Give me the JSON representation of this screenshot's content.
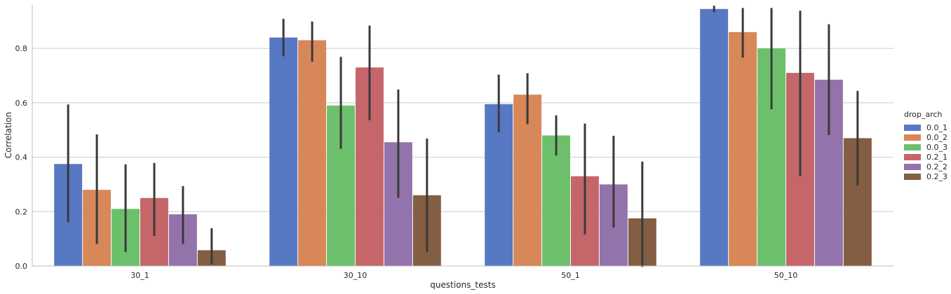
{
  "chart_data": {
    "type": "bar",
    "xlabel": "questions_tests",
    "ylabel": "Correlation",
    "categories": [
      "30_1",
      "30_10",
      "50_1",
      "50_10"
    ],
    "ylim": [
      0,
      0.96
    ],
    "yticks": [
      0.0,
      0.2,
      0.4,
      0.6,
      0.8
    ],
    "grid": "horizontal",
    "legend": {
      "title": "drop_arch",
      "placement": "right"
    },
    "series": [
      {
        "name": "0.0_1",
        "color": "#5778c3",
        "values": [
          0.375,
          0.84,
          0.595,
          0.945
        ],
        "err_low": [
          0.165,
          0.775,
          0.495,
          0.937
        ],
        "err_high": [
          0.59,
          0.905,
          0.7,
          0.953
        ]
      },
      {
        "name": "0.0_2",
        "color": "#d88759",
        "values": [
          0.28,
          0.83,
          0.63,
          0.86
        ],
        "err_low": [
          0.085,
          0.755,
          0.525,
          0.77
        ],
        "err_high": [
          0.48,
          0.895,
          0.705,
          0.945
        ]
      },
      {
        "name": "0.0_3",
        "color": "#6dc06b",
        "values": [
          0.21,
          0.59,
          0.48,
          0.8
        ],
        "err_low": [
          0.055,
          0.435,
          0.41,
          0.58
        ],
        "err_high": [
          0.37,
          0.765,
          0.55,
          0.945
        ]
      },
      {
        "name": "0.2_1",
        "color": "#c4666a",
        "values": [
          0.25,
          0.73,
          0.33,
          0.71
        ],
        "err_low": [
          0.115,
          0.54,
          0.12,
          0.335
        ],
        "err_high": [
          0.375,
          0.88,
          0.52,
          0.935
        ]
      },
      {
        "name": "0.2_2",
        "color": "#9373ac",
        "values": [
          0.19,
          0.455,
          0.3,
          0.685
        ],
        "err_low": [
          0.085,
          0.255,
          0.145,
          0.485
        ],
        "err_high": [
          0.29,
          0.645,
          0.475,
          0.885
        ]
      },
      {
        "name": "0.2_3",
        "color": "#835e43",
        "values": [
          0.058,
          0.26,
          0.175,
          0.47
        ],
        "err_low": [
          0.01,
          0.055,
          0.0,
          0.3
        ],
        "err_high": [
          0.135,
          0.465,
          0.38,
          0.64
        ]
      }
    ]
  }
}
